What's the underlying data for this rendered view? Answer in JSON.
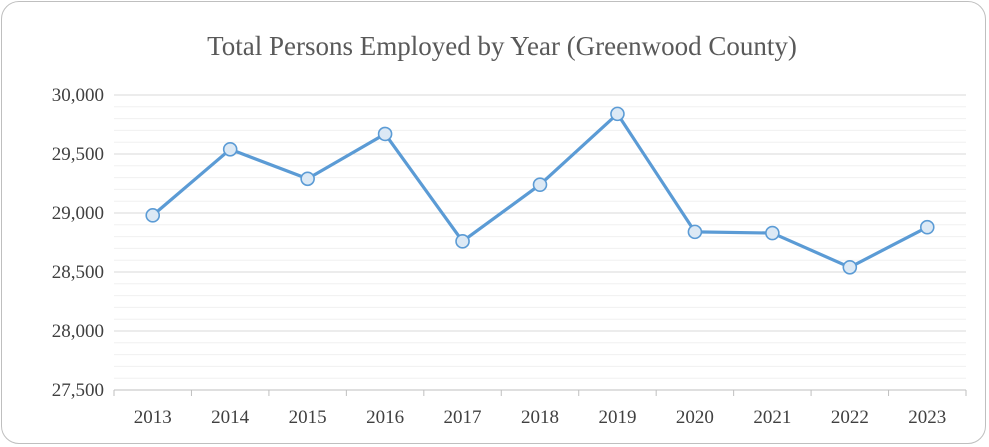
{
  "chart_data": {
    "type": "line",
    "title": "Total Persons Employed by Year (Greenwood County)",
    "xlabel": "",
    "ylabel": "",
    "categories": [
      "2013",
      "2014",
      "2015",
      "2016",
      "2017",
      "2018",
      "2019",
      "2020",
      "2021",
      "2022",
      "2023"
    ],
    "series": [
      {
        "values": [
          28980,
          29540,
          29290,
          29670,
          28760,
          29240,
          29840,
          28840,
          28830,
          28540,
          28880
        ]
      }
    ],
    "ylim": [
      27500,
      30000
    ],
    "yticks": [
      27500,
      28000,
      28500,
      29000,
      29500,
      30000
    ],
    "ytick_labels": [
      "27,500",
      "28,000",
      "28,500",
      "29,000",
      "29,500",
      "30,000"
    ],
    "y_minor_step": 100,
    "grid": true,
    "legend": "none",
    "colors": {
      "line": "#5b9bd5",
      "marker_fill": "#dce9f5",
      "major_grid": "#d9d9d9",
      "minor_grid": "#f0f0f0",
      "axis": "#bfbfbf"
    }
  }
}
